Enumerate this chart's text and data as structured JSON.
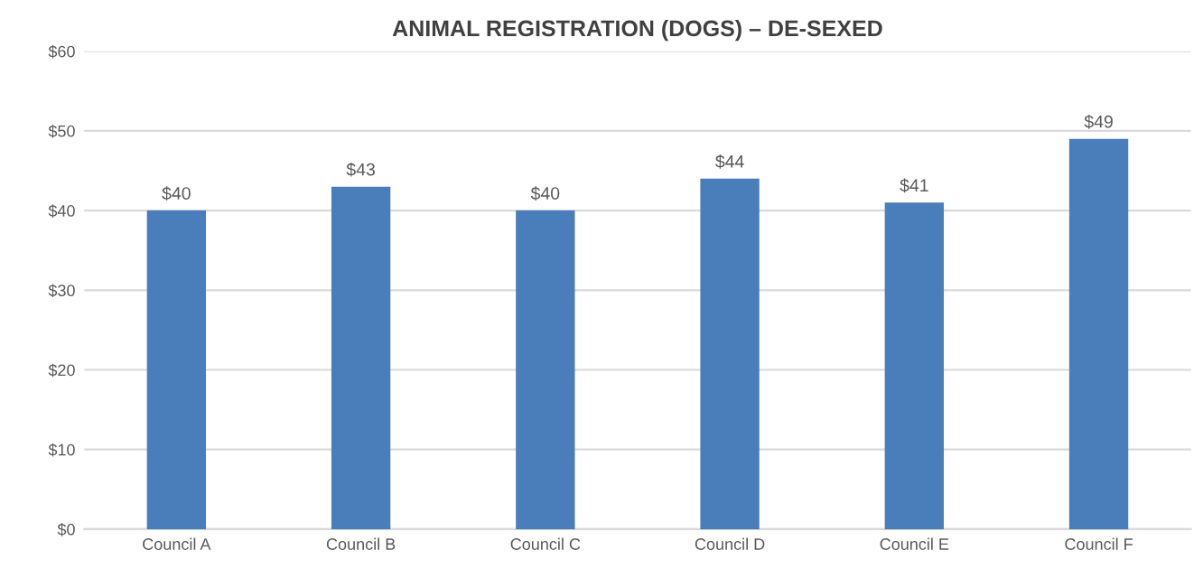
{
  "chart_data": {
    "type": "bar",
    "title": "ANIMAL REGISTRATION (DOGS) – DE-SEXED",
    "categories": [
      "Council A",
      "Council B",
      "Council C",
      "Council D",
      "Council E",
      "Council F"
    ],
    "values": [
      40,
      43,
      40,
      44,
      41,
      49
    ],
    "color": "#4a7ebb",
    "value_labels": [
      "$40",
      "$43",
      "$40",
      "$44",
      "$41",
      "$49"
    ],
    "ylim": [
      0,
      60
    ],
    "yticks": [
      {
        "value": 0,
        "label": "$0"
      },
      {
        "value": 10,
        "label": "$10"
      },
      {
        "value": 20,
        "label": "$20"
      },
      {
        "value": 30,
        "label": "$30"
      },
      {
        "value": 40,
        "label": "$40"
      },
      {
        "value": 50,
        "label": "$50"
      },
      {
        "value": 60,
        "label": "$60"
      }
    ],
    "grid": "y"
  }
}
